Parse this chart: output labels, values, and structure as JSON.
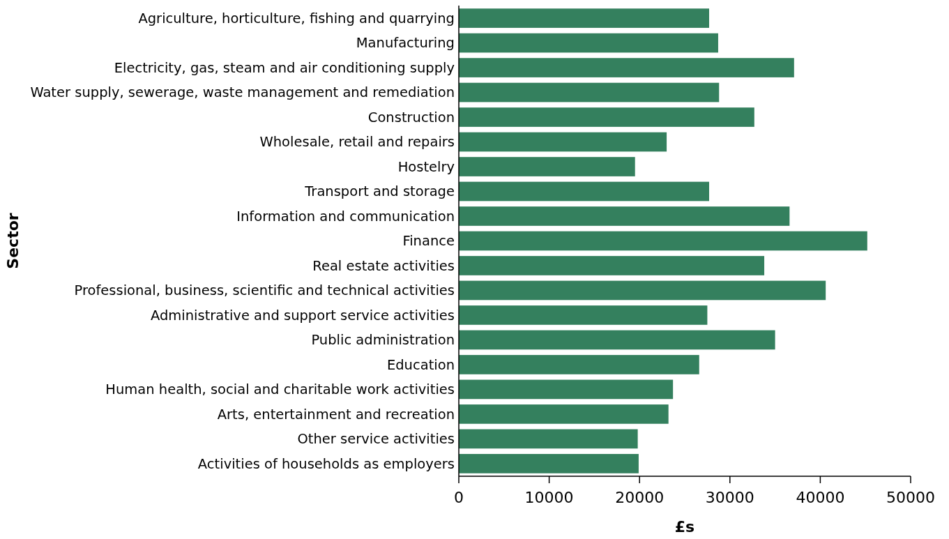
{
  "chart_data": {
    "type": "bar",
    "orientation": "horizontal",
    "xlabel": "£s",
    "ylabel": "Sector",
    "categories": [
      "Agriculture, horticulture, fishing and quarrying",
      "Manufacturing",
      "Electricity, gas, steam and air conditioning supply",
      "Water supply, sewerage, waste management and remediation",
      "Construction",
      "Wholesale, retail and repairs",
      "Hostelry",
      "Transport and storage",
      "Information and communication",
      "Finance",
      "Real estate activities",
      "Professional, business, scientific and technical activities",
      "Administrative and support service activities",
      "Public administration",
      "Education",
      "Human health, social and charitable work activities",
      "Arts, entertainment and recreation",
      "Other service activities",
      "Activities of households as employers"
    ],
    "values": [
      27700,
      28700,
      37100,
      28800,
      32700,
      23000,
      19500,
      27700,
      36600,
      45200,
      33800,
      40600,
      27500,
      35000,
      26600,
      23700,
      23200,
      19800,
      19900
    ],
    "color": "#34805e",
    "xlim": [
      0,
      50000
    ],
    "xticks": [
      0,
      10000,
      20000,
      30000,
      40000,
      50000
    ]
  }
}
